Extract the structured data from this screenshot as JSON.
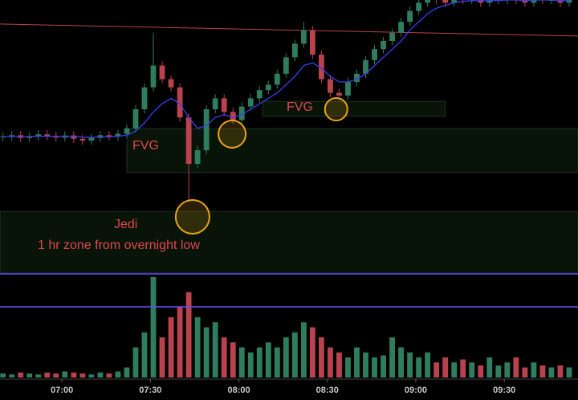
{
  "chart_data": {
    "type": "candlestick",
    "x": [
      400,
      403,
      406,
      409,
      412,
      415,
      418,
      421,
      424,
      427,
      430,
      433,
      436,
      439,
      442,
      445,
      448,
      451,
      454,
      457,
      460,
      463,
      466,
      469,
      472,
      475,
      478,
      481,
      484,
      487,
      490,
      493,
      496,
      499,
      502,
      505,
      508,
      511,
      514,
      517,
      520,
      523,
      526,
      529,
      532,
      535,
      538,
      541,
      544,
      547,
      550,
      553,
      556,
      559,
      562,
      565,
      568,
      571,
      574,
      577,
      580,
      583,
      586,
      589,
      592
    ],
    "open": [
      49.8,
      50,
      50.5,
      49.5,
      50,
      50.8,
      50.2,
      49.6,
      50.4,
      49.2,
      48.5,
      49.5,
      50.5,
      50,
      51,
      53,
      60,
      68,
      76,
      71,
      68,
      57,
      40,
      45,
      60,
      64,
      59,
      56,
      61,
      64,
      67,
      69,
      73,
      79,
      84,
      89,
      80,
      71,
      66,
      65,
      70,
      73,
      78,
      82,
      85,
      88,
      92,
      96,
      99,
      101,
      100,
      99,
      101,
      100,
      101,
      99,
      100,
      100,
      101,
      100,
      99,
      101,
      100,
      100,
      99
    ],
    "high": [
      51.5,
      52,
      52,
      51.5,
      52.3,
      52.3,
      51.7,
      51.9,
      51.9,
      50.7,
      51,
      52,
      52,
      52.5,
      54.5,
      61.5,
      69.5,
      88,
      77.5,
      72.5,
      69.5,
      58.5,
      46.5,
      61.5,
      65.5,
      65.5,
      60.5,
      62.5,
      65.5,
      68.5,
      70.5,
      74.5,
      80.5,
      85.5,
      92,
      90.5,
      81.5,
      72.5,
      67.5,
      71.5,
      74.5,
      79.5,
      83.5,
      86.5,
      89.5,
      93.5,
      97.5,
      100.5,
      102.5,
      102.5,
      101.5,
      102.5,
      102.5,
      102.5,
      102.5,
      101.5,
      101.5,
      102.5,
      102.5,
      101.5,
      102.5,
      102.5,
      101.5,
      101.5,
      101.5
    ],
    "low": [
      48.3,
      48.5,
      48,
      48,
      48.5,
      48.7,
      48.1,
      48.1,
      47.7,
      47,
      47,
      48,
      48.5,
      48.5,
      49.5,
      51.5,
      58.5,
      66.5,
      69.5,
      66.5,
      55.5,
      26,
      38.5,
      43.5,
      58.5,
      57.5,
      54.5,
      54.5,
      59.5,
      62.5,
      65.5,
      67.5,
      71.5,
      77.5,
      82.5,
      78.5,
      69.5,
      64.5,
      63.5,
      63.5,
      68.5,
      71.5,
      76.5,
      80.5,
      83.5,
      86.5,
      90.5,
      94.5,
      97.5,
      98.5,
      97.5,
      97.5,
      98.5,
      98.5,
      97.5,
      97.5,
      98.5,
      98.5,
      98.5,
      97.5,
      97.5,
      98.5,
      98.5,
      97.5,
      97.5
    ],
    "close": [
      50,
      50.5,
      49.5,
      50,
      50.8,
      50.2,
      49.6,
      50.4,
      49.2,
      48.5,
      49.5,
      50.5,
      50,
      51,
      53,
      60,
      68,
      76,
      71,
      68,
      57,
      40,
      45,
      60,
      64,
      59,
      56,
      61,
      64,
      67,
      69,
      73,
      79,
      84,
      89,
      80,
      71,
      66,
      65,
      70,
      73,
      78,
      82,
      85,
      88,
      92,
      96,
      99,
      101,
      100,
      99,
      101,
      100,
      101,
      99,
      100,
      100,
      101,
      100,
      99,
      101,
      100,
      100,
      99,
      100
    ],
    "ma": [
      50,
      50,
      50,
      50,
      50.1,
      50.1,
      50,
      50,
      50,
      49.8,
      49.7,
      49.8,
      49.9,
      50.1,
      50.5,
      52,
      55,
      59,
      62,
      64,
      62,
      57,
      53,
      54,
      57,
      58,
      57,
      58,
      60,
      62,
      64,
      66,
      69,
      72,
      76,
      77,
      75,
      72,
      70,
      70,
      71,
      73,
      76,
      79,
      82,
      85,
      89,
      92,
      95,
      97,
      98,
      99,
      99.5,
      99.8,
      99.7,
      99.8,
      99.8,
      100,
      100,
      99.8,
      100,
      100,
      100,
      99.8,
      99.9
    ],
    "volume": [
      4,
      3,
      5,
      4,
      3,
      5,
      4,
      6,
      5,
      4,
      3,
      5,
      4,
      6,
      10,
      30,
      45,
      100,
      40,
      60,
      70,
      85,
      60,
      50,
      55,
      40,
      35,
      30,
      25,
      30,
      35,
      30,
      40,
      45,
      55,
      50,
      40,
      30,
      25,
      20,
      30,
      25,
      20,
      22,
      40,
      30,
      25,
      20,
      25,
      15,
      20,
      15,
      18,
      15,
      12,
      20,
      12,
      15,
      20,
      10,
      15,
      12,
      10,
      12,
      10
    ],
    "xlim": [
      399,
      595
    ],
    "ylim": [
      0,
      100
    ],
    "volume_ylim": [
      0,
      100
    ],
    "xticks": [
      {
        "value": 420,
        "label": "07:00"
      },
      {
        "value": 450,
        "label": "07:30"
      },
      {
        "value": 480,
        "label": "08:00"
      },
      {
        "value": 510,
        "label": "08:30"
      },
      {
        "value": 540,
        "label": "09:00"
      },
      {
        "value": 570,
        "label": "09:30"
      }
    ],
    "up_color": "#2f7d5f",
    "down_color": "#b8434d",
    "ma_color": "#3a3ff0",
    "zones": [
      {
        "x": [
          442,
          595
        ],
        "y": [
          36.8,
          52.9
        ]
      },
      {
        "x": [
          488,
          550
        ],
        "y": [
          57.4,
          62.9
        ]
      },
      {
        "x": [
          399,
          595
        ],
        "y": [
          0,
          22.6
        ]
      }
    ],
    "markers": [
      {
        "x": 477.7,
        "y": 50.9
      },
      {
        "x": 464.3,
        "y": 20.6
      },
      {
        "x": 513,
        "y": 60
      }
    ],
    "level": {
      "x": [
        399,
        595
      ],
      "y": [
        91.2,
        86.8
      ]
    },
    "labels": [
      "FVG",
      "FVG",
      "Jedi",
      "1 hr zone from overnight low"
    ]
  }
}
